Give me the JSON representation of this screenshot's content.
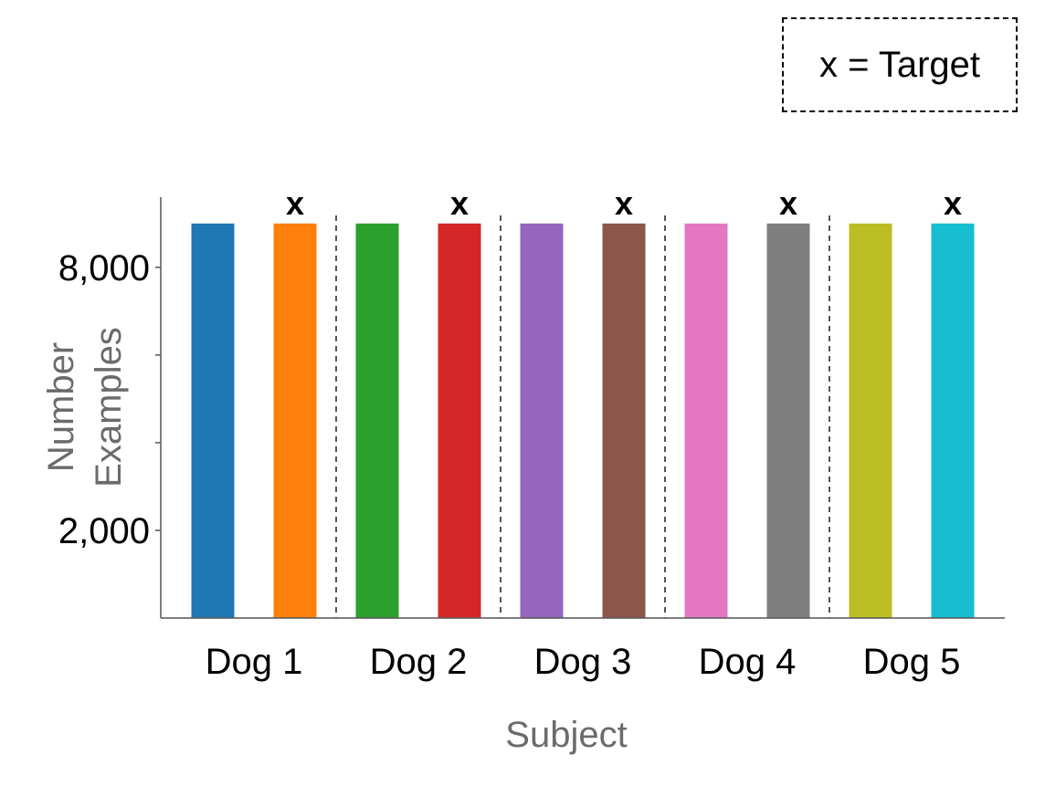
{
  "legend": {
    "text": "x = Target"
  },
  "chart_data": {
    "type": "bar",
    "xlabel": "Subject",
    "ylabel_lines": [
      "Number",
      "Examples"
    ],
    "ylim": [
      0,
      9600
    ],
    "yticks": [
      2000,
      4000,
      6000,
      8000
    ],
    "ytick_labels": [
      "2,000",
      "",
      "",
      "8,000"
    ],
    "target_marker": "x",
    "groups": [
      {
        "label": "Dog 1",
        "bars": [
          {
            "value": 9000,
            "color": "#1f77b4",
            "target": false
          },
          {
            "value": 9000,
            "color": "#ff7f0e",
            "target": true
          }
        ]
      },
      {
        "label": "Dog 2",
        "bars": [
          {
            "value": 9000,
            "color": "#2ca02c",
            "target": false
          },
          {
            "value": 9000,
            "color": "#d62728",
            "target": true
          }
        ]
      },
      {
        "label": "Dog 3",
        "bars": [
          {
            "value": 9000,
            "color": "#9467bd",
            "target": false
          },
          {
            "value": 9000,
            "color": "#8c564b",
            "target": true
          }
        ]
      },
      {
        "label": "Dog 4",
        "bars": [
          {
            "value": 9000,
            "color": "#e377c2",
            "target": false
          },
          {
            "value": 9000,
            "color": "#7f7f7f",
            "target": true
          }
        ]
      },
      {
        "label": "Dog 5",
        "bars": [
          {
            "value": 9000,
            "color": "#bcbd22",
            "target": false
          },
          {
            "value": 9000,
            "color": "#17becf",
            "target": true
          }
        ]
      }
    ]
  }
}
